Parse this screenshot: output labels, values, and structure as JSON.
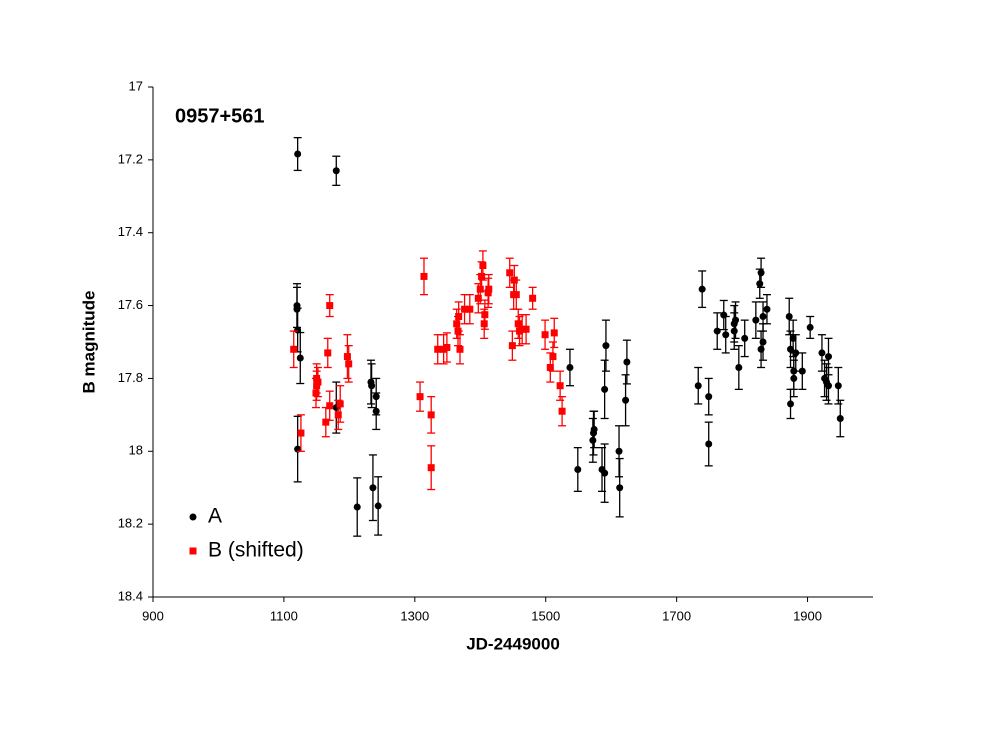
{
  "chart_data": {
    "type": "scatter",
    "annotation": "0957+561",
    "x_label": "JD-2449000",
    "y_label": "B magnitude",
    "xlim": [
      900,
      2000
    ],
    "xticks": [
      900,
      1100,
      1300,
      1500,
      1700,
      1900
    ],
    "ylim": [
      18.4,
      17
    ],
    "yticks": [
      17,
      17.2,
      17.4,
      17.6,
      17.8,
      18,
      18.2,
      18.4
    ],
    "legend": "lower left",
    "series": [
      {
        "name": "A",
        "color": "#000000",
        "marker": "circle",
        "x": [
          1121,
          1120,
          1120,
          1121,
          1125,
          1121,
          1180,
          1180,
          1212,
          1233,
          1234,
          1236,
          1241,
          1241,
          1244,
          1537,
          1549,
          1572,
          1573,
          1574,
          1586,
          1590,
          1592,
          1590,
          1612,
          1613,
          1622,
          1624,
          1733,
          1739,
          1749,
          1749,
          1762,
          1772,
          1775,
          1788,
          1790,
          1788,
          1795,
          1804,
          1821,
          1827,
          1829,
          1829,
          1832,
          1832,
          1838,
          1872,
          1874,
          1874,
          1878,
          1879,
          1879,
          1882,
          1892,
          1904,
          1922,
          1926,
          1932,
          1932,
          1929,
          1947,
          1950
        ],
        "values": [
          17.184,
          17.6,
          17.61,
          17.667,
          17.744,
          17.994,
          17.23,
          17.88,
          18.153,
          17.81,
          17.82,
          18.1,
          17.85,
          17.89,
          18.15,
          17.77,
          18.05,
          17.97,
          17.95,
          17.94,
          18.05,
          17.83,
          17.71,
          18.06,
          18.0,
          18.1,
          17.86,
          17.755,
          17.82,
          17.555,
          17.85,
          17.98,
          17.67,
          17.626,
          17.68,
          17.65,
          17.64,
          17.67,
          17.77,
          17.69,
          17.64,
          17.54,
          17.51,
          17.72,
          17.7,
          17.63,
          17.61,
          17.63,
          17.72,
          17.87,
          17.69,
          17.8,
          17.78,
          17.73,
          17.78,
          17.66,
          17.73,
          17.8,
          17.74,
          17.82,
          17.81,
          17.82,
          17.91
        ],
        "errors": [
          0.045,
          0.06,
          0.06,
          0.06,
          0.07,
          0.09,
          0.04,
          0.07,
          0.08,
          0.06,
          0.06,
          0.09,
          0.05,
          0.05,
          0.08,
          0.05,
          0.06,
          0.06,
          0.06,
          0.05,
          0.06,
          0.08,
          0.07,
          0.08,
          0.07,
          0.08,
          0.07,
          0.06,
          0.05,
          0.05,
          0.05,
          0.06,
          0.05,
          0.04,
          0.05,
          0.05,
          0.05,
          0.05,
          0.06,
          0.05,
          0.05,
          0.04,
          0.04,
          0.05,
          0.05,
          0.04,
          0.04,
          0.05,
          0.05,
          0.04,
          0.05,
          0.05,
          0.05,
          0.05,
          0.05,
          0.03,
          0.05,
          0.05,
          0.05,
          0.05,
          0.05,
          0.05,
          0.05
        ]
      },
      {
        "name": "B (shifted)",
        "color": "#ff0000",
        "marker": "square",
        "x": [
          1115,
          1126,
          1150,
          1150,
          1152,
          1149,
          1164,
          1167,
          1170,
          1170,
          1183,
          1186,
          1197,
          1199,
          1308,
          1314,
          1325,
          1325,
          1335,
          1344,
          1349,
          1364,
          1366,
          1367,
          1369,
          1376,
          1384,
          1397,
          1400,
          1402,
          1404,
          1406,
          1407,
          1412,
          1413,
          1445,
          1449,
          1451,
          1452,
          1455,
          1458,
          1460,
          1464,
          1470,
          1480,
          1499,
          1507,
          1511,
          1513,
          1522,
          1525
        ],
        "values": [
          17.72,
          17.95,
          17.8,
          17.82,
          17.81,
          17.84,
          17.92,
          17.73,
          17.6,
          17.875,
          17.9,
          17.87,
          17.74,
          17.76,
          17.85,
          17.52,
          17.9,
          18.045,
          17.72,
          17.72,
          17.715,
          17.65,
          17.67,
          17.63,
          17.72,
          17.61,
          17.61,
          17.58,
          17.555,
          17.52,
          17.49,
          17.65,
          17.625,
          17.565,
          17.555,
          17.51,
          17.71,
          17.57,
          17.53,
          17.57,
          17.65,
          17.67,
          17.665,
          17.665,
          17.58,
          17.68,
          17.77,
          17.74,
          17.675,
          17.82,
          17.89
        ],
        "errors": [
          0.05,
          0.05,
          0.04,
          0.04,
          0.04,
          0.04,
          0.04,
          0.04,
          0.03,
          0.04,
          0.04,
          0.05,
          0.06,
          0.05,
          0.04,
          0.05,
          0.05,
          0.06,
          0.04,
          0.04,
          0.04,
          0.04,
          0.04,
          0.04,
          0.04,
          0.04,
          0.04,
          0.04,
          0.04,
          0.04,
          0.04,
          0.04,
          0.04,
          0.04,
          0.04,
          0.04,
          0.04,
          0.04,
          0.04,
          0.04,
          0.04,
          0.04,
          0.04,
          0.04,
          0.03,
          0.04,
          0.04,
          0.04,
          0.04,
          0.04,
          0.04
        ]
      }
    ]
  }
}
